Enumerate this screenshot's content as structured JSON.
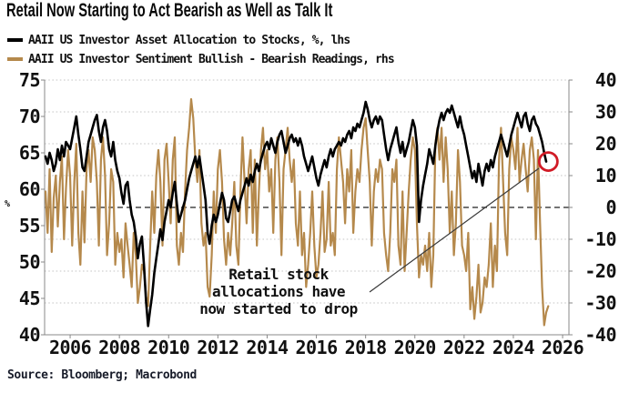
{
  "title": "Retail Now Starting to Act Bearish as Well as Talk It",
  "legend": [
    {
      "label": "AAII US Investor Asset Allocation to Stocks, %, lhs",
      "color": "#000000"
    },
    {
      "label": "AAII US Investor Sentiment Bullish - Bearish Readings, rhs",
      "color": "#b5894c"
    }
  ],
  "annotation": {
    "text": "Retail stock\nallocations have\nnow started to drop"
  },
  "source": "Source: Bloomberg; Macrobond",
  "colors": {
    "background": "#ffffff",
    "grid": "#c6c6c6",
    "frame": "#888888",
    "zero_line": "#222222",
    "callout_line": "#3a3a3a",
    "highlight_circle": "#d11b26",
    "text": "#111111"
  },
  "chart_data": {
    "type": "line",
    "title": "Retail Now Starting to Act Bearish as Well as Talk It",
    "x_axis": {
      "ticks": [
        2006,
        2008,
        2010,
        2012,
        2014,
        2016,
        2018,
        2020,
        2022,
        2024,
        2026
      ],
      "range": [
        2005.0,
        2026.26
      ],
      "grid": false
    },
    "y_left": {
      "label": "%",
      "ticks": [
        75,
        70,
        65,
        60,
        55,
        50,
        45,
        40
      ],
      "range": [
        40,
        75
      ]
    },
    "y_right": {
      "ticks": [
        40,
        30,
        20,
        10,
        0,
        -10,
        -20,
        -30,
        -40
      ],
      "range": [
        -40,
        40
      ],
      "grid": true,
      "zero_dashed_at": 0
    },
    "series": [
      {
        "name": "AAII US Investor Asset Allocation to Stocks, %, lhs",
        "axis": "left",
        "color": "#000000",
        "width": 2.6,
        "start_year": 2005.0,
        "points_per_year": 12,
        "values": [
          64.5,
          63.5,
          65,
          64,
          62.5,
          63.5,
          65.5,
          64,
          66,
          64.5,
          66.5,
          66,
          65.5,
          67,
          68.5,
          70,
          67.5,
          65.5,
          63,
          62.5,
          64.5,
          66.5,
          67.5,
          68.5,
          69.5,
          70.2,
          68,
          66.5,
          68.5,
          69.5,
          68,
          65.5,
          64.5,
          66.5,
          64,
          62.5,
          61.5,
          59.5,
          58,
          60.5,
          61,
          58.5,
          56.5,
          55.5,
          53.5,
          50.5,
          52.5,
          53.5,
          49.5,
          44.5,
          41.2,
          43.5,
          45.5,
          48.5,
          50.5,
          52.5,
          54.5,
          53,
          55.5,
          57,
          58.5,
          57.5,
          59.5,
          61,
          58,
          55.5,
          56.5,
          57.5,
          58.5,
          60,
          61.5,
          62.5,
          63.5,
          64.5,
          63,
          64.5,
          62.5,
          60.5,
          58.5,
          54,
          52.5,
          55,
          56.5,
          55.5,
          56.5,
          58,
          59.5,
          58.5,
          56,
          55.5,
          57,
          58.5,
          59,
          58,
          57,
          58.5,
          59.5,
          60.5,
          61.5,
          60.5,
          62,
          61,
          62.5,
          63.5,
          62.5,
          64,
          65,
          66,
          66.5,
          65.5,
          67,
          66,
          65,
          66.5,
          67.5,
          68,
          66.5,
          65,
          66,
          67,
          67.5,
          66.5,
          67,
          66,
          67,
          66,
          64.5,
          63.5,
          62.5,
          63.5,
          64.5,
          63,
          61.5,
          60.5,
          62,
          63,
          64,
          63,
          64.5,
          65.5,
          64.5,
          65.5,
          66,
          66.5,
          66,
          67,
          66.5,
          67.5,
          68,
          67,
          68.5,
          68,
          69,
          68.5,
          69.5,
          70.5,
          72,
          71,
          69.5,
          68.5,
          69.5,
          70,
          69,
          70,
          69.5,
          67.5,
          65.5,
          64,
          65.5,
          66.5,
          67.5,
          68.5,
          66.5,
          65,
          66.5,
          64.5,
          65.5,
          66.5,
          68,
          69.5,
          68.5,
          66,
          55.5,
          58.5,
          60.5,
          62,
          63.5,
          65.5,
          64.5,
          63.5,
          66,
          68,
          69.5,
          70.5,
          69.5,
          70.5,
          71,
          70.5,
          71.5,
          70.5,
          69.5,
          68.5,
          70,
          68.5,
          67.5,
          66,
          64.5,
          63,
          61.5,
          62.5,
          61,
          63.5,
          62,
          60.5,
          62.5,
          63.5,
          62.5,
          64,
          63,
          64.5,
          65.5,
          66.5,
          67.5,
          66.5,
          65.5,
          64.5,
          66,
          67.5,
          68.5,
          69.5,
          70.5,
          69.5,
          68.5,
          70,
          70.5,
          69,
          68,
          69.5,
          70,
          69,
          68.5,
          67.5,
          66.5,
          65,
          63.8
        ]
      },
      {
        "name": "AAII US Investor Sentiment Bullish - Bearish Readings, rhs",
        "axis": "right",
        "color": "#b5894c",
        "width": 2.2,
        "start_year": 2005.0,
        "points_per_year": 12,
        "values": [
          5,
          -8,
          12,
          -14,
          3,
          10,
          -6,
          8,
          16,
          -10,
          6,
          18,
          10,
          -12,
          8,
          20,
          -8,
          -18,
          5,
          -11,
          12,
          18,
          8,
          22,
          18,
          8,
          -12,
          15,
          22,
          10,
          -15,
          -5,
          12,
          8,
          -18,
          -8,
          -14,
          -10,
          -22,
          -5,
          -12,
          -18,
          -25,
          -8,
          -15,
          -30,
          -25,
          -18,
          -20,
          -28,
          -31,
          -12,
          5,
          -8,
          10,
          18,
          8,
          -12,
          15,
          20,
          8,
          -5,
          15,
          22,
          -12,
          -18,
          -8,
          -14,
          5,
          18,
          25,
          34,
          28,
          15,
          8,
          18,
          -5,
          -12,
          -8,
          -25,
          -28,
          -15,
          5,
          -8,
          12,
          18,
          8,
          -10,
          -18,
          -8,
          -15,
          -5,
          8,
          -12,
          -18,
          5,
          22,
          8,
          -5,
          12,
          18,
          -8,
          15,
          -12,
          5,
          18,
          25,
          12,
          18,
          5,
          12,
          -8,
          15,
          22,
          8,
          -15,
          12,
          18,
          25,
          15,
          8,
          15,
          -5,
          -12,
          5,
          -15,
          -8,
          -25,
          -18,
          -8,
          5,
          -12,
          -22,
          -18,
          -8,
          5,
          -14,
          -10,
          8,
          -12,
          -8,
          -15,
          12,
          22,
          15,
          8,
          -5,
          12,
          5,
          18,
          -8,
          5,
          12,
          8,
          18,
          25,
          28,
          18,
          8,
          -12,
          5,
          12,
          8,
          15,
          12,
          -8,
          -15,
          -20,
          -8,
          12,
          8,
          15,
          -12,
          -18,
          5,
          -20,
          -8,
          5,
          15,
          22,
          18,
          -5,
          -22,
          -15,
          -18,
          -12,
          -20,
          -8,
          -25,
          -15,
          20,
          25,
          15,
          25,
          8,
          22,
          12,
          -8,
          5,
          -15,
          -5,
          18,
          8,
          -12,
          -15,
          -20,
          -8,
          -32,
          -25,
          -35,
          -28,
          -18,
          -33,
          -30,
          -22,
          -25,
          -18,
          -5,
          -25,
          -12,
          -20,
          15,
          25,
          8,
          -8,
          -15,
          12,
          22,
          18,
          12,
          25,
          8,
          15,
          20,
          12,
          5,
          18,
          22,
          15,
          -10,
          18,
          -5,
          -25,
          -37,
          -33,
          -31
        ]
      }
    ],
    "highlight_circle": {
      "x_year": 2025.42,
      "value_left": 63.8,
      "radius": 10
    },
    "callout_line": {
      "from": [
        406,
        321
      ],
      "to": [
        592,
        185
      ]
    },
    "annotation_text": "Retail stock allocations have now started to drop"
  }
}
